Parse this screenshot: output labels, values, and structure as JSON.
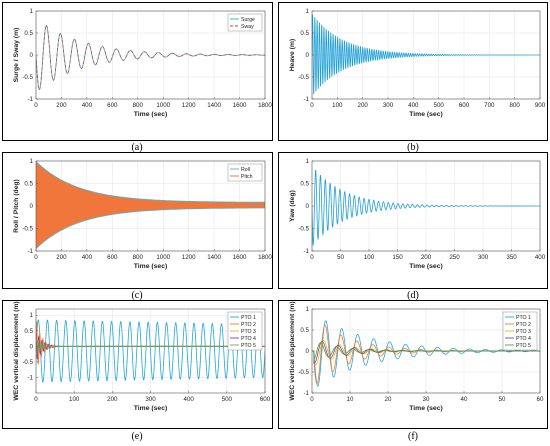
{
  "chart_data": [
    {
      "id": "a",
      "caption": "(a)",
      "type": "line",
      "xlabel": "Time (sec)",
      "ylabel": "Surge / Sway (m)",
      "xlim": [
        0,
        1800
      ],
      "ylim": [
        -1,
        1
      ],
      "xticks": [
        0,
        200,
        400,
        600,
        800,
        1000,
        1200,
        1400,
        1600,
        1800
      ],
      "yticks": [
        -1,
        -0.5,
        0,
        0.5,
        1
      ],
      "ytick_labels": [
        "-1",
        "-0.5",
        "0",
        "0.5",
        "1"
      ],
      "grid": true,
      "legend_position": "top-right",
      "series": [
        {
          "name": "Surge",
          "color": "#22b4d6",
          "dash": "",
          "model": {
            "amp": 0.85,
            "period": 110,
            "tau": 350,
            "t0": 0,
            "phase": 0,
            "sign": -1,
            "offset": 0
          }
        },
        {
          "name": "Sway",
          "color": "#d7422c",
          "dash": "3,2",
          "model": {
            "amp": 0.85,
            "period": 110,
            "tau": 350,
            "t0": 0,
            "phase": 0,
            "sign": -1,
            "offset": 0
          }
        }
      ]
    },
    {
      "id": "b",
      "caption": "(b)",
      "type": "line",
      "xlabel": "Time (sec)",
      "ylabel": "Heave (m)",
      "xlim": [
        0,
        900
      ],
      "ylim": [
        -1,
        1
      ],
      "xticks": [
        0,
        100,
        200,
        300,
        400,
        500,
        600,
        700,
        800,
        900
      ],
      "yticks": [
        -1,
        -0.5,
        0,
        0.5,
        1
      ],
      "ytick_labels": [
        "-1",
        "-0.5",
        "0",
        "0.5",
        "1"
      ],
      "grid": true,
      "legend_position": "none",
      "series": [
        {
          "name": "",
          "color": "#22a0d6",
          "dash": "",
          "model": {
            "amp": 0.95,
            "period": 9,
            "tau": 120,
            "t0": 0,
            "phase": 0,
            "sign": 1,
            "offset": 0
          }
        }
      ]
    },
    {
      "id": "c",
      "caption": "(c)",
      "type": "line",
      "xlabel": "Time (sec)",
      "ylabel": "Roll / Pitch (deg)",
      "xlim": [
        0,
        1800
      ],
      "ylim": [
        -1,
        1
      ],
      "xticks": [
        0,
        200,
        400,
        600,
        800,
        1000,
        1200,
        1400,
        1600,
        1800
      ],
      "yticks": [
        -1,
        -0.5,
        0,
        0.5,
        1
      ],
      "ytick_labels": [
        "-1",
        "-0.5",
        "0",
        "0.5",
        "1"
      ],
      "grid": true,
      "legend_position": "top-right",
      "envelope": {
        "amp": 0.97,
        "tau": 330,
        "floor": 0.06,
        "offset": 0.02
      },
      "series": [
        {
          "name": "Roll",
          "color": "#4ab7c9",
          "dash": "",
          "model": null
        },
        {
          "name": "Pitch",
          "color": "#ef6a2a",
          "dash": "",
          "model": null
        }
      ]
    },
    {
      "id": "d",
      "caption": "(d)",
      "type": "line",
      "xlabel": "Time (sec)",
      "ylabel": "Yaw (deg)",
      "xlim": [
        0,
        400
      ],
      "ylim": [
        -1,
        1
      ],
      "xticks": [
        0,
        50,
        100,
        150,
        200,
        250,
        300,
        350,
        400
      ],
      "yticks": [
        -1,
        -0.5,
        0,
        0.5,
        1
      ],
      "ytick_labels": [
        "-1",
        "-0.5",
        "0",
        "0.5",
        "1"
      ],
      "grid": true,
      "legend_position": "none",
      "series": [
        {
          "name": "",
          "color": "#22a0d6",
          "dash": "",
          "model": {
            "amp": 0.9,
            "period": 8.5,
            "tau": 55,
            "t0": 0,
            "phase": 0,
            "sign": -1,
            "offset": 0
          }
        }
      ]
    },
    {
      "id": "e",
      "caption": "(e)",
      "type": "line",
      "xlabel": "Time (sec)",
      "ylabel": "WEC vertical displacement (m)",
      "xlim": [
        0,
        600
      ],
      "ylim": [
        -1.5,
        1.2
      ],
      "xticks": [
        0,
        100,
        200,
        300,
        400,
        500,
        600
      ],
      "yticks": [
        -1,
        -0.5,
        0,
        0.5,
        1
      ],
      "ytick_labels": [
        "-1",
        "-0.5",
        "0",
        "0.5",
        "1"
      ],
      "grid": true,
      "legend_position": "top-right",
      "series": [
        {
          "name": "PTO 1",
          "color": "#22a6de",
          "dash": "",
          "model": {
            "amp": 1.0,
            "period": 24,
            "tau": 100000,
            "t0": 0,
            "phase": 0,
            "sign": 1,
            "offset": -0.15,
            "decay_to": 0.85
          }
        },
        {
          "name": "PTO 2",
          "color": "#ef7c2a",
          "dash": "",
          "model": {
            "amp": 0.9,
            "period": 8,
            "tau": 14,
            "t0": 0,
            "phase": 0,
            "sign": 1,
            "offset": 0
          }
        },
        {
          "name": "PTO 3",
          "color": "#e8b81c",
          "dash": "",
          "model": {
            "amp": 0.4,
            "period": 8,
            "tau": 14,
            "t0": 0,
            "phase": 1.2,
            "sign": 1,
            "offset": 0
          }
        },
        {
          "name": "PTO 4",
          "color": "#8a3fa3",
          "dash": "",
          "model": {
            "amp": 0.5,
            "period": 8,
            "tau": 16,
            "t0": 0,
            "phase": 2.1,
            "sign": 1,
            "offset": 0
          }
        },
        {
          "name": "PTO 5",
          "color": "#6aa84f",
          "dash": "",
          "model": {
            "amp": 0.3,
            "period": 8,
            "tau": 12,
            "t0": 0,
            "phase": 3.0,
            "sign": 1,
            "offset": 0
          }
        }
      ]
    },
    {
      "id": "f",
      "caption": "(f)",
      "type": "line",
      "xlabel": "Time (sec)",
      "ylabel": "WEC vertical displacement (m)",
      "xlim": [
        0,
        60
      ],
      "ylim": [
        -1,
        1
      ],
      "xticks": [
        0,
        10,
        20,
        30,
        40,
        50,
        60
      ],
      "yticks": [
        -1,
        -0.5,
        0,
        0.5,
        1
      ],
      "ytick_labels": [
        "-1",
        "-0.5",
        "0",
        "0.5",
        "1"
      ],
      "grid": true,
      "legend_position": "top-right",
      "series": [
        {
          "name": "PTO 1",
          "color": "#22a6de",
          "dash": "",
          "model": {
            "amp": 0.9,
            "period": 4.2,
            "tau": 14,
            "t0": 0.5,
            "phase": 0,
            "sign": -1,
            "offset": 0
          }
        },
        {
          "name": "PTO 2",
          "color": "#ef7c2a",
          "dash": "",
          "model": {
            "amp": 0.85,
            "period": 4.2,
            "tau": 9,
            "t0": 0.5,
            "phase": 0.3,
            "sign": -1,
            "offset": 0
          }
        },
        {
          "name": "PTO 3",
          "color": "#e8b81c",
          "dash": "",
          "model": {
            "amp": 0.35,
            "period": 4.2,
            "tau": 8,
            "t0": 0.5,
            "phase": 0.8,
            "sign": -1,
            "offset": 0
          }
        },
        {
          "name": "PTO 4",
          "color": "#8a3fa3",
          "dash": "",
          "model": {
            "amp": 0.3,
            "period": 4.2,
            "tau": 8,
            "t0": 0.5,
            "phase": 1.4,
            "sign": -1,
            "offset": 0
          }
        },
        {
          "name": "PTO 5",
          "color": "#4aa04a",
          "dash": "",
          "model": {
            "amp": 0.25,
            "period": 4.2,
            "tau": 7,
            "t0": 0.5,
            "phase": 2.0,
            "sign": -1,
            "offset": 0
          }
        }
      ]
    }
  ]
}
